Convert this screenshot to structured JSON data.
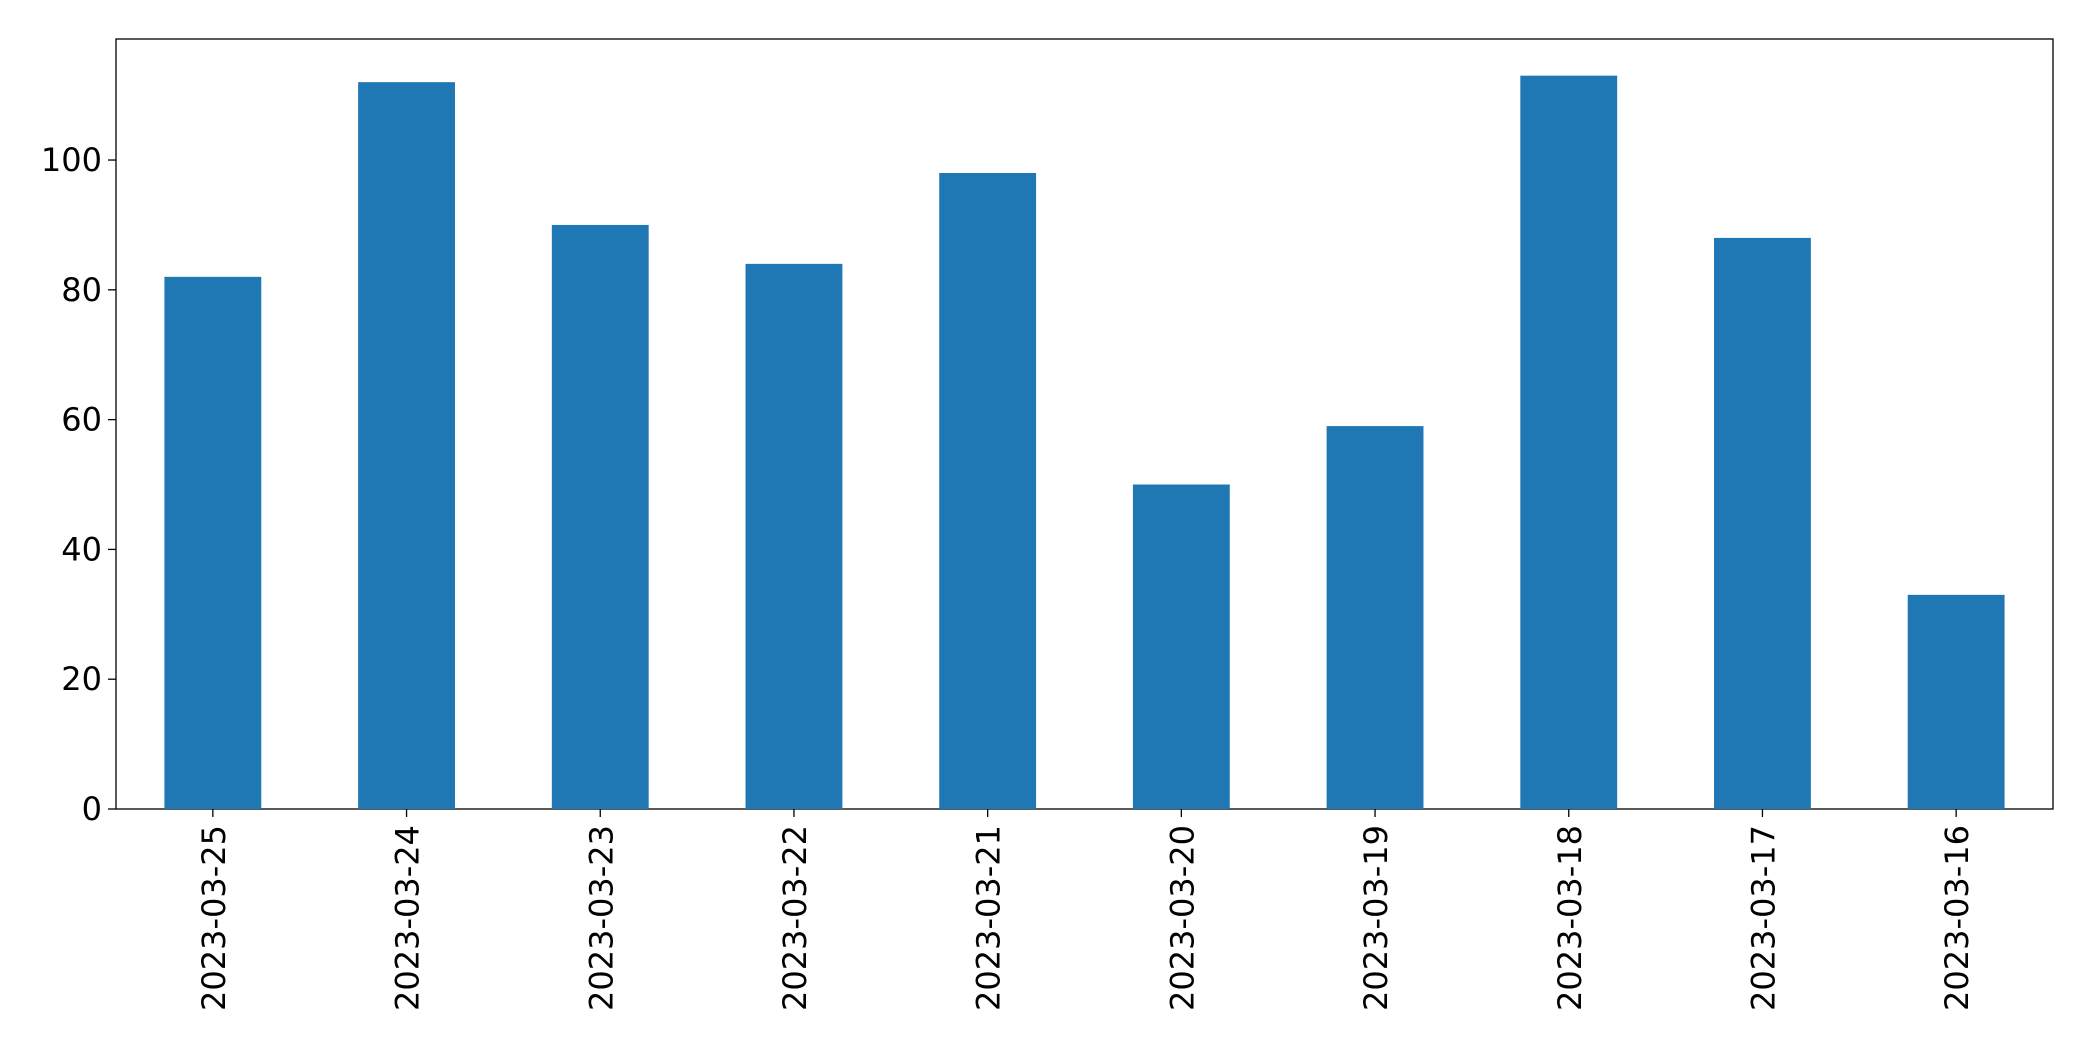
{
  "chart_data": {
    "type": "bar",
    "categories": [
      "2023-03-25",
      "2023-03-24",
      "2023-03-23",
      "2023-03-22",
      "2023-03-21",
      "2023-03-20",
      "2023-03-19",
      "2023-03-18",
      "2023-03-17",
      "2023-03-16"
    ],
    "values": [
      82,
      112,
      90,
      84,
      98,
      50,
      59,
      113,
      88,
      33
    ],
    "color": "#1f77b4",
    "ylim": [
      0,
      118.65
    ],
    "yticks": [
      0,
      20,
      40,
      60,
      80,
      100
    ],
    "grid": false
  }
}
